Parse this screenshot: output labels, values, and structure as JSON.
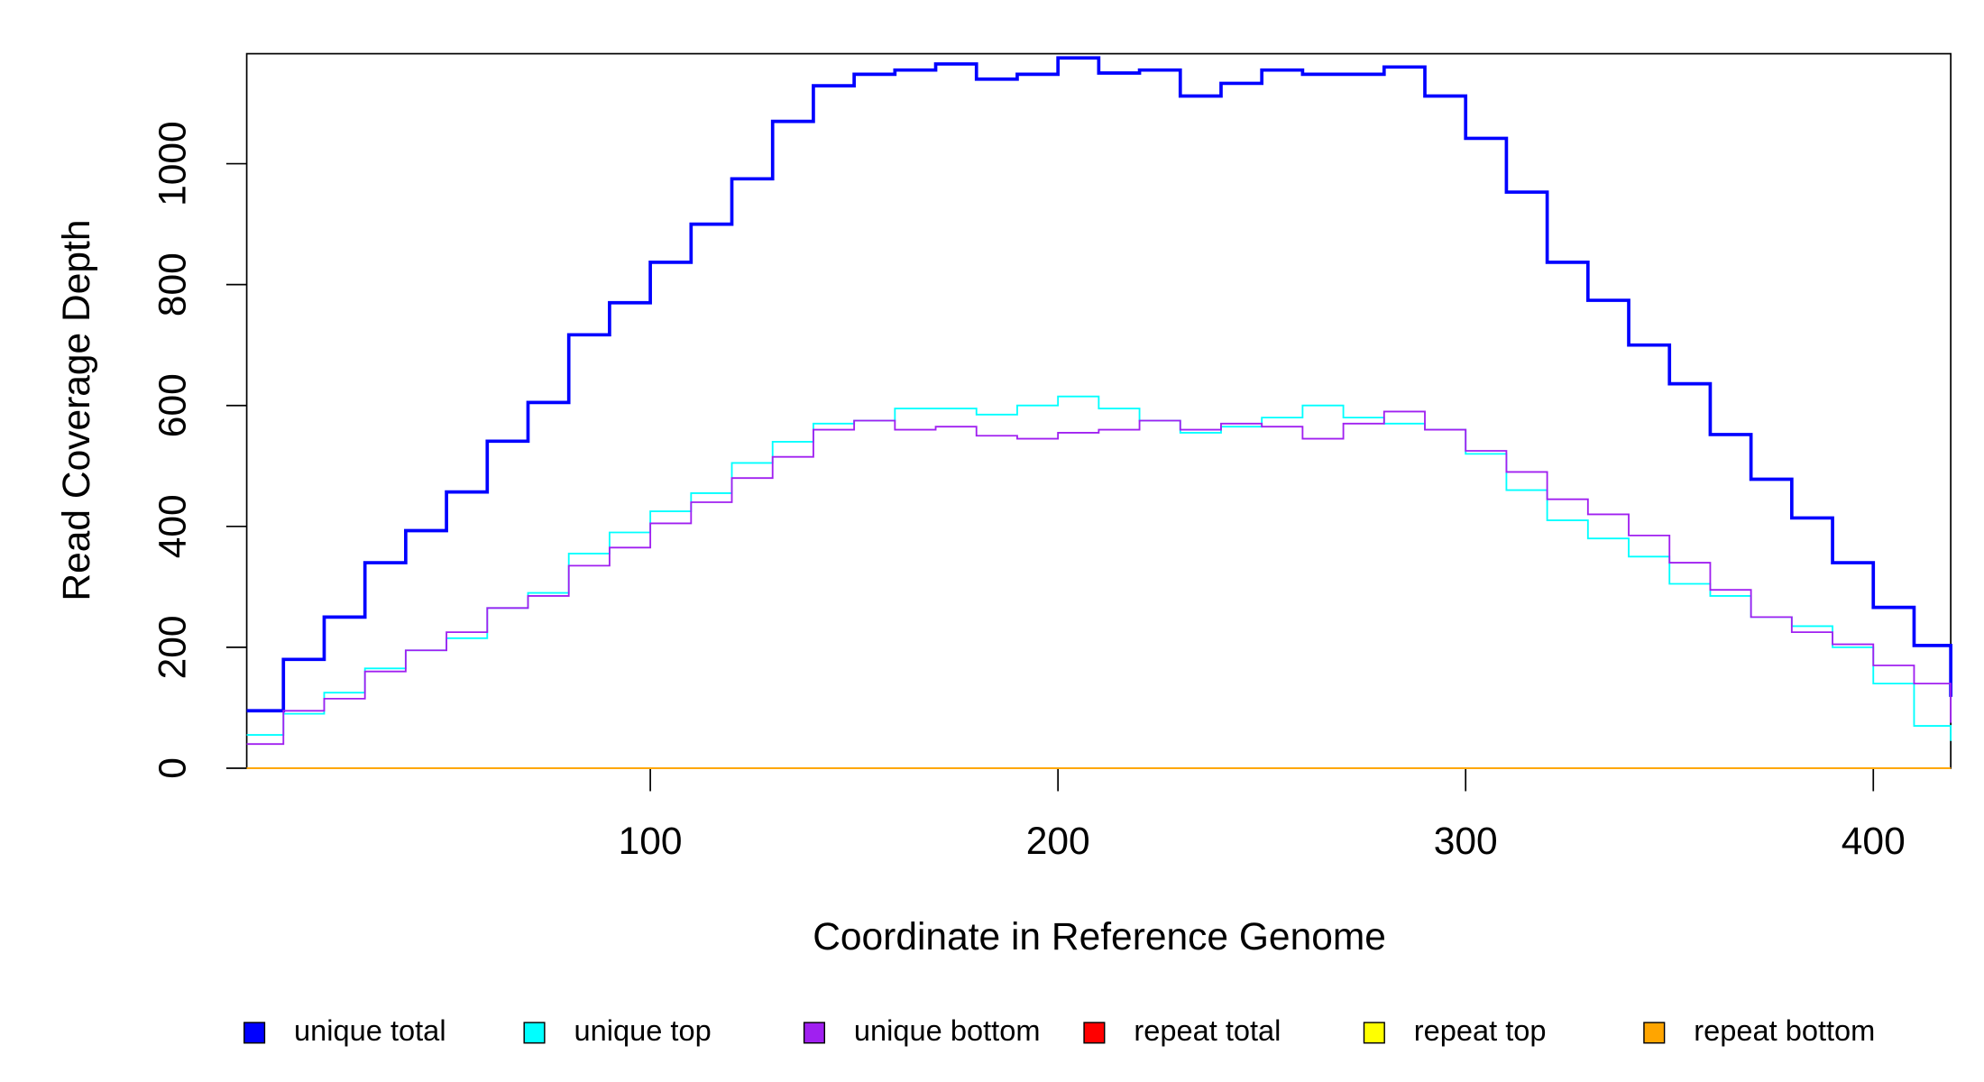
{
  "chart_data": {
    "type": "step",
    "xlabel": "Coordinate in Reference Genome",
    "ylabel": "Read Coverage Depth",
    "x": [
      1,
      10,
      20,
      30,
      40,
      50,
      60,
      70,
      80,
      90,
      100,
      110,
      120,
      130,
      140,
      150,
      160,
      170,
      180,
      190,
      200,
      210,
      220,
      230,
      240,
      250,
      260,
      270,
      280,
      290,
      300,
      310,
      320,
      330,
      340,
      350,
      360,
      370,
      380,
      390,
      400,
      410,
      419
    ],
    "series": [
      {
        "name": "unique total",
        "color": "#0000ff",
        "values": [
          95,
          180,
          250,
          340,
          393,
          457,
          541,
          605,
          717,
          770,
          837,
          900,
          975,
          1070,
          1129,
          1148,
          1155,
          1165,
          1140,
          1148,
          1175,
          1150,
          1155,
          1112,
          1133,
          1155,
          1148,
          1148,
          1160,
          1112,
          1042,
          953,
          837,
          774,
          700,
          636,
          552,
          478,
          414,
          340,
          266,
          203,
          118
        ]
      },
      {
        "name": "unique top",
        "color": "#00ffff",
        "values": [
          55,
          90,
          125,
          165,
          195,
          215,
          265,
          290,
          355,
          390,
          425,
          455,
          505,
          540,
          570,
          575,
          595,
          595,
          585,
          600,
          615,
          595,
          575,
          555,
          565,
          580,
          600,
          580,
          570,
          560,
          520,
          460,
          410,
          380,
          350,
          305,
          285,
          250,
          235,
          200,
          140,
          70,
          45
        ]
      },
      {
        "name": "unique bottom",
        "color": "#a020f0",
        "values": [
          40,
          95,
          115,
          160,
          195,
          225,
          265,
          285,
          335,
          365,
          405,
          440,
          480,
          515,
          560,
          575,
          560,
          565,
          550,
          545,
          555,
          560,
          575,
          560,
          570,
          565,
          545,
          570,
          590,
          560,
          525,
          490,
          445,
          420,
          385,
          340,
          295,
          250,
          225,
          205,
          170,
          140,
          75
        ]
      },
      {
        "name": "repeat total",
        "color": "#ff0000",
        "values": [
          0,
          0,
          0,
          0,
          0,
          0,
          0,
          0,
          0,
          0,
          0,
          0,
          0,
          0,
          0,
          0,
          0,
          0,
          0,
          0,
          0,
          0,
          0,
          0,
          0,
          0,
          0,
          0,
          0,
          0,
          0,
          0,
          0,
          0,
          0,
          0,
          0,
          0,
          0,
          0,
          0,
          0,
          0
        ]
      },
      {
        "name": "repeat top",
        "color": "#ffff00",
        "values": [
          0,
          0,
          0,
          0,
          0,
          0,
          0,
          0,
          0,
          0,
          0,
          0,
          0,
          0,
          0,
          0,
          0,
          0,
          0,
          0,
          0,
          0,
          0,
          0,
          0,
          0,
          0,
          0,
          0,
          0,
          0,
          0,
          0,
          0,
          0,
          0,
          0,
          0,
          0,
          0,
          0,
          0,
          0
        ]
      },
      {
        "name": "repeat bottom",
        "color": "#ffa500",
        "values": [
          0,
          0,
          0,
          0,
          0,
          0,
          0,
          0,
          0,
          0,
          0,
          0,
          0,
          0,
          0,
          0,
          0,
          0,
          0,
          0,
          0,
          0,
          0,
          0,
          0,
          0,
          0,
          0,
          0,
          0,
          0,
          0,
          0,
          0,
          0,
          0,
          0,
          0,
          0,
          0,
          0,
          0,
          0
        ]
      }
    ],
    "xlim": [
      1,
      419
    ],
    "ylim": [
      0,
      1182
    ],
    "xticks": [
      100,
      200,
      300,
      400
    ],
    "yticks": [
      0,
      200,
      400,
      600,
      800,
      1000
    ],
    "legend": "bottom"
  }
}
